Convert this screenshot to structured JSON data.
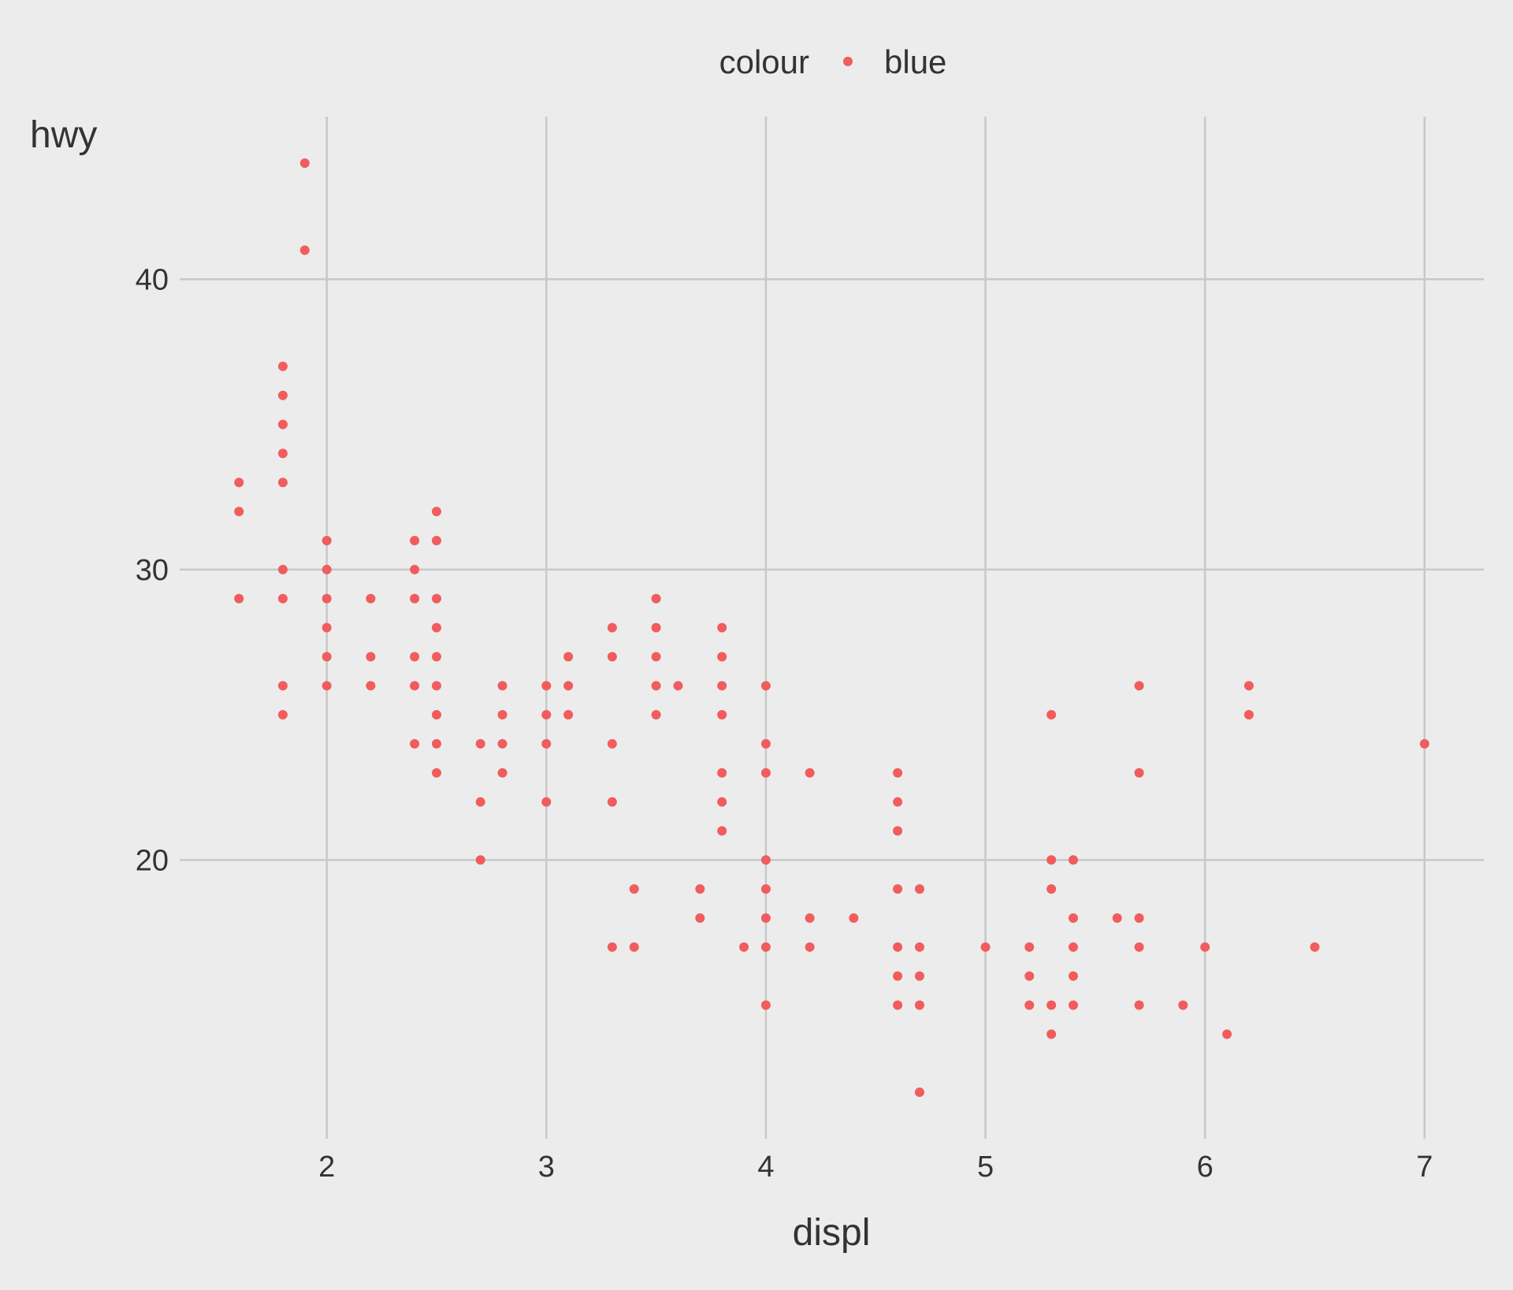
{
  "chart_data": {
    "type": "scatter",
    "xlabel": "displ",
    "ylabel": "hwy",
    "xlim": [
      1.33,
      7.27
    ],
    "ylim": [
      10.4,
      45.6
    ],
    "xticks": [
      2,
      3,
      4,
      5,
      6,
      7
    ],
    "yticks": [
      20,
      30,
      40
    ],
    "grid": true,
    "legend": {
      "position": "top",
      "title": "colour",
      "entries": [
        "blue"
      ]
    },
    "series": [
      {
        "name": "blue",
        "color": "#f15c5c",
        "points": [
          [
            1.6,
            33
          ],
          [
            1.6,
            32
          ],
          [
            1.6,
            29
          ],
          [
            1.8,
            37
          ],
          [
            1.8,
            36
          ],
          [
            1.8,
            35
          ],
          [
            1.8,
            34
          ],
          [
            1.8,
            33
          ],
          [
            1.8,
            30
          ],
          [
            1.8,
            29
          ],
          [
            1.8,
            26
          ],
          [
            1.8,
            25
          ],
          [
            1.9,
            44
          ],
          [
            1.9,
            41
          ],
          [
            2.0,
            31
          ],
          [
            2.0,
            30
          ],
          [
            2.0,
            29
          ],
          [
            2.0,
            28
          ],
          [
            2.0,
            27
          ],
          [
            2.0,
            26
          ],
          [
            2.2,
            29
          ],
          [
            2.2,
            27
          ],
          [
            2.2,
            26
          ],
          [
            2.4,
            31
          ],
          [
            2.4,
            30
          ],
          [
            2.4,
            29
          ],
          [
            2.4,
            27
          ],
          [
            2.4,
            26
          ],
          [
            2.4,
            24
          ],
          [
            2.5,
            32
          ],
          [
            2.5,
            31
          ],
          [
            2.5,
            29
          ],
          [
            2.5,
            28
          ],
          [
            2.5,
            27
          ],
          [
            2.5,
            26
          ],
          [
            2.5,
            25
          ],
          [
            2.5,
            24
          ],
          [
            2.5,
            23
          ],
          [
            2.7,
            24
          ],
          [
            2.7,
            22
          ],
          [
            2.7,
            20
          ],
          [
            2.8,
            26
          ],
          [
            2.8,
            25
          ],
          [
            2.8,
            24
          ],
          [
            2.8,
            23
          ],
          [
            3.0,
            26
          ],
          [
            3.0,
            25
          ],
          [
            3.0,
            24
          ],
          [
            3.0,
            22
          ],
          [
            3.1,
            27
          ],
          [
            3.1,
            26
          ],
          [
            3.1,
            25
          ],
          [
            3.3,
            28
          ],
          [
            3.3,
            27
          ],
          [
            3.3,
            24
          ],
          [
            3.3,
            22
          ],
          [
            3.3,
            17
          ],
          [
            3.4,
            19
          ],
          [
            3.4,
            17
          ],
          [
            3.5,
            29
          ],
          [
            3.5,
            28
          ],
          [
            3.5,
            27
          ],
          [
            3.5,
            26
          ],
          [
            3.5,
            25
          ],
          [
            3.6,
            26
          ],
          [
            3.7,
            19
          ],
          [
            3.7,
            18
          ],
          [
            3.8,
            28
          ],
          [
            3.8,
            27
          ],
          [
            3.8,
            26
          ],
          [
            3.8,
            25
          ],
          [
            3.8,
            23
          ],
          [
            3.8,
            22
          ],
          [
            3.8,
            21
          ],
          [
            3.9,
            17
          ],
          [
            4.0,
            26
          ],
          [
            4.0,
            24
          ],
          [
            4.0,
            23
          ],
          [
            4.0,
            20
          ],
          [
            4.0,
            19
          ],
          [
            4.0,
            18
          ],
          [
            4.0,
            17
          ],
          [
            4.0,
            15
          ],
          [
            4.2,
            23
          ],
          [
            4.2,
            18
          ],
          [
            4.2,
            17
          ],
          [
            4.4,
            18
          ],
          [
            4.6,
            23
          ],
          [
            4.6,
            22
          ],
          [
            4.6,
            21
          ],
          [
            4.6,
            19
          ],
          [
            4.6,
            17
          ],
          [
            4.6,
            16
          ],
          [
            4.6,
            15
          ],
          [
            4.7,
            19
          ],
          [
            4.7,
            17
          ],
          [
            4.7,
            16
          ],
          [
            4.7,
            15
          ],
          [
            4.7,
            12
          ],
          [
            5.0,
            17
          ],
          [
            5.2,
            17
          ],
          [
            5.2,
            16
          ],
          [
            5.2,
            15
          ],
          [
            5.3,
            25
          ],
          [
            5.3,
            20
          ],
          [
            5.3,
            19
          ],
          [
            5.3,
            15
          ],
          [
            5.3,
            14
          ],
          [
            5.4,
            20
          ],
          [
            5.4,
            18
          ],
          [
            5.4,
            17
          ],
          [
            5.4,
            16
          ],
          [
            5.4,
            15
          ],
          [
            5.6,
            18
          ],
          [
            5.7,
            26
          ],
          [
            5.7,
            23
          ],
          [
            5.7,
            18
          ],
          [
            5.7,
            17
          ],
          [
            5.7,
            15
          ],
          [
            5.9,
            15
          ],
          [
            6.0,
            17
          ],
          [
            6.1,
            14
          ],
          [
            6.2,
            26
          ],
          [
            6.2,
            25
          ],
          [
            6.5,
            17
          ],
          [
            7.0,
            24
          ]
        ]
      }
    ]
  },
  "colors": {
    "background": "#ececec",
    "grid": "#c8c8c8",
    "point": "#f15c5c",
    "text": "#333333"
  }
}
